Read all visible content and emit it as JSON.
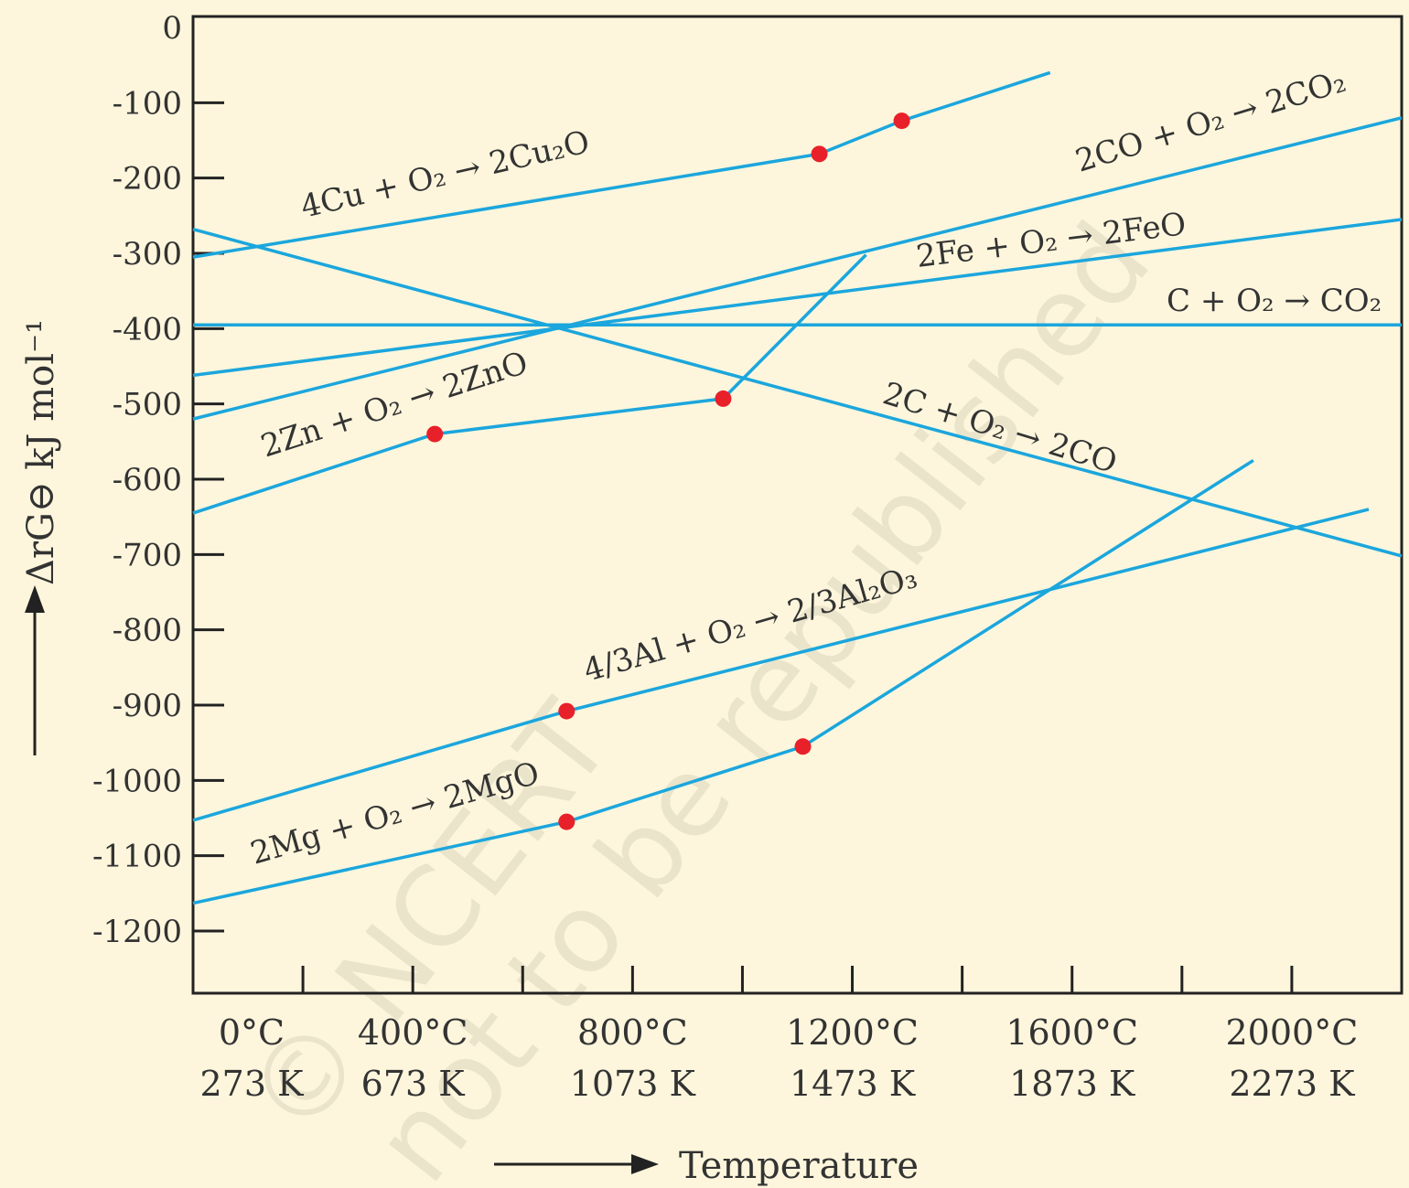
{
  "chart_data": {
    "type": "line",
    "ylabel": "ΔrG⊖ kJ mol⁻¹",
    "xlabel": "Temperature",
    "ylim": [
      -1200,
      0
    ],
    "xlim_celsius": [
      0,
      2200
    ],
    "y_ticks": [
      0,
      -100,
      -200,
      -300,
      -400,
      -500,
      -600,
      -700,
      -800,
      -900,
      -1000,
      -1100,
      -1200
    ],
    "y_tick_labels": [
      "0",
      "-100",
      "-200",
      "-300",
      "-400",
      "-500",
      "-600",
      "-700",
      "-800",
      "-900",
      "-1000",
      "-1100",
      "-1200"
    ],
    "x_ticks_celsius": [
      0,
      200,
      400,
      600,
      800,
      1000,
      1200,
      1400,
      1600,
      1800,
      2000,
      2200
    ],
    "x_tick_labels": [
      {
        "c": 0,
        "celsius": "0°C",
        "kelvin": "273 K"
      },
      {
        "c": 400,
        "celsius": "400°C",
        "kelvin": "673 K"
      },
      {
        "c": 800,
        "celsius": "800°C",
        "kelvin": "1073 K"
      },
      {
        "c": 1200,
        "celsius": "1200°C",
        "kelvin": "1473 K"
      },
      {
        "c": 1600,
        "celsius": "1600°C",
        "kelvin": "1873 K"
      },
      {
        "c": 2000,
        "celsius": "2000°C",
        "kelvin": "2273 K"
      }
    ],
    "series": [
      {
        "name": "4Cu + O₂ → 2Cu₂O",
        "points": [
          [
            0,
            -305
          ],
          [
            1140,
            -168
          ],
          [
            1290,
            -124
          ],
          [
            1560,
            -60
          ]
        ],
        "markers": [
          [
            1140,
            -168
          ],
          [
            1290,
            -124
          ]
        ]
      },
      {
        "name": "2CO + O₂ → 2CO₂",
        "points": [
          [
            0,
            -520
          ],
          [
            2200,
            -120
          ]
        ],
        "markers": []
      },
      {
        "name": "2Fe + O₂ → 2FeO",
        "points": [
          [
            0,
            -462
          ],
          [
            2200,
            -255
          ]
        ],
        "markers": []
      },
      {
        "name": "C + O₂ → CO₂",
        "points": [
          [
            0,
            -395
          ],
          [
            2200,
            -395
          ]
        ],
        "markers": []
      },
      {
        "name": "2C + O₂ → 2CO",
        "points": [
          [
            0,
            -268
          ],
          [
            2200,
            -702
          ]
        ],
        "markers": []
      },
      {
        "name": "2Zn + O₂ → 2ZnO",
        "points": [
          [
            0,
            -645
          ],
          [
            440,
            -540
          ],
          [
            965,
            -493
          ],
          [
            1225,
            -302
          ]
        ],
        "markers": [
          [
            440,
            -540
          ],
          [
            965,
            -493
          ]
        ]
      },
      {
        "name": "4/3Al + O₂ → 2/3Al₂O₃",
        "points": [
          [
            0,
            -1053
          ],
          [
            680,
            -908
          ],
          [
            2140,
            -640
          ]
        ],
        "markers": [
          [
            680,
            -908
          ]
        ]
      },
      {
        "name": "2Mg + O₂ → 2MgO",
        "points": [
          [
            0,
            -1163
          ],
          [
            680,
            -1055
          ],
          [
            1110,
            -955
          ],
          [
            1930,
            -575
          ]
        ],
        "markers": [
          [
            680,
            -1055
          ],
          [
            1110,
            -955
          ]
        ]
      }
    ],
    "series_labels": [
      {
        "text": "4Cu + O₂ → 2Cu₂O"
      },
      {
        "text": "2CO + O₂ → 2CO₂"
      },
      {
        "text": "2Fe + O₂ → 2FeO"
      },
      {
        "text": "C + O₂ → CO₂"
      },
      {
        "text": "2C + O₂ → 2CO"
      },
      {
        "text": "2Zn + O₂ → 2ZnO"
      },
      {
        "text": "4/3Al + O₂ → 2/3Al₂O₃"
      },
      {
        "text": "2Mg + O₂ → 2MgO"
      }
    ],
    "grid": false,
    "line_color": "#1ba6dd",
    "marker_color": "#e8202a"
  },
  "watermark": {
    "line1": "© NCERT",
    "line2": "not to be republished"
  }
}
